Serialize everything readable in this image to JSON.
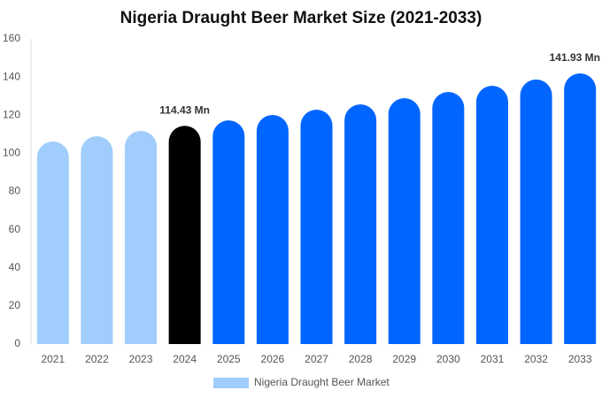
{
  "chart_data": {
    "type": "bar",
    "title": "Nigeria Draught Beer Market Size (2021-2033)",
    "categories": [
      "2021",
      "2022",
      "2023",
      "2024",
      "2025",
      "2026",
      "2027",
      "2028",
      "2029",
      "2030",
      "2031",
      "2032",
      "2033"
    ],
    "series": [
      {
        "name": "Nigeria Draught Beer Market",
        "color": "#a0cdfc",
        "values": [
          106.2,
          109.0,
          111.8,
          114.43,
          117.3,
          120.1,
          122.9,
          125.7,
          128.9,
          132.2,
          135.4,
          138.7,
          141.93
        ],
        "value_labels": [
          null,
          null,
          null,
          "114.43 Mn",
          null,
          null,
          null,
          null,
          null,
          null,
          null,
          null,
          "141.93 Mn"
        ],
        "colors": [
          "#a0cdfc",
          "#a0cdfc",
          "#a0cdfc",
          "#000000",
          "#0066ff",
          "#0066ff",
          "#0066ff",
          "#0066ff",
          "#0066ff",
          "#0066ff",
          "#0066ff",
          "#0066ff",
          "#0066ff"
        ]
      }
    ],
    "ylim": [
      0,
      160
    ],
    "yticks": [
      0,
      20,
      40,
      60,
      80,
      100,
      120,
      140,
      160
    ],
    "grid": false
  }
}
